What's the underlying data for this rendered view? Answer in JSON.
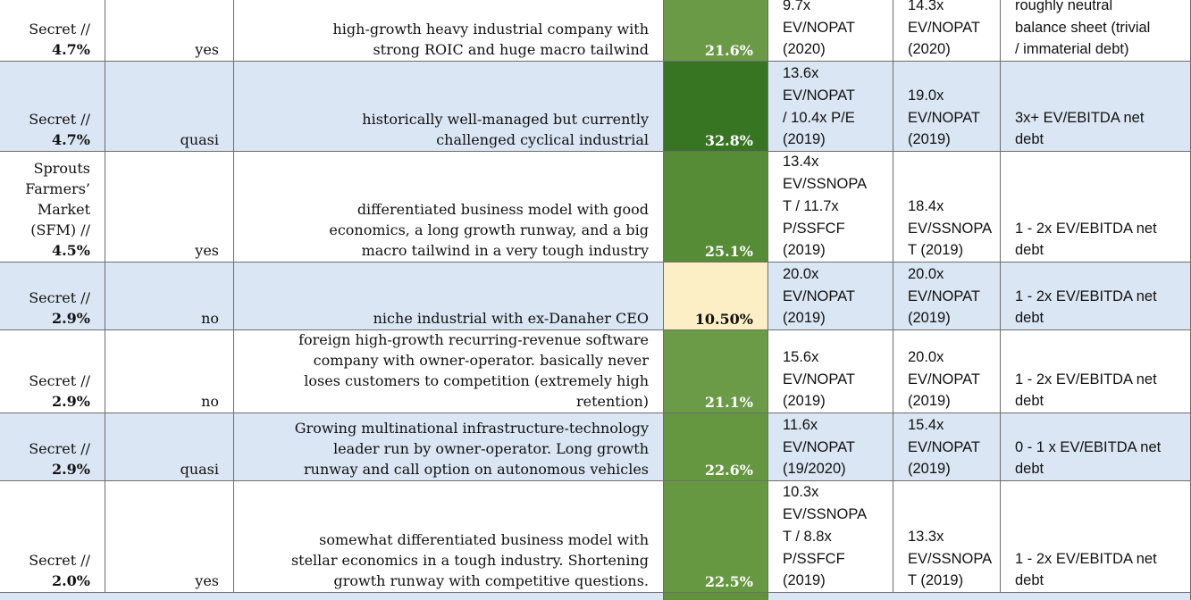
{
  "table": {
    "rows": [
      {
        "name": [
          "Secret //"
        ],
        "weight": "4.7%",
        "owner": "yes",
        "description": [
          "high-growth heavy industrial company with",
          "strong ROIC and huge macro tailwind"
        ],
        "return": "21.6%",
        "return_color": "#6b9a47",
        "valuation_now": [
          "9.7x",
          "EV/NOPAT",
          "(2020)"
        ],
        "valuation_target": [
          "14.3x",
          "EV/NOPAT",
          "(2020)"
        ],
        "balance_sheet": [
          "roughly neutral",
          "balance sheet (trivial",
          "/ immaterial debt)"
        ]
      },
      {
        "name": [
          "Secret //"
        ],
        "weight": "4.7%",
        "owner": "quasi",
        "description": [
          "historically well-managed but currently",
          "challenged cyclical industrial"
        ],
        "return": "32.8%",
        "return_color": "#377523",
        "valuation_now": [
          "13.6x",
          "EV/NOPAT",
          "/ 10.4x P/E",
          "(2019)"
        ],
        "valuation_target": [
          "19.0x",
          "EV/NOPAT",
          "(2019)"
        ],
        "balance_sheet": [
          "3x+ EV/EBITDA net",
          "debt"
        ]
      },
      {
        "name": [
          "Sprouts",
          "Farmers’",
          "Market",
          "(SFM) //"
        ],
        "weight": "4.5%",
        "owner": "yes",
        "description": [
          "differentiated business model with good",
          "economics, a long growth runway, and a big",
          "macro tailwind in a very tough industry"
        ],
        "return": "25.1%",
        "return_color": "#578c36",
        "valuation_now": [
          "13.4x",
          "EV/SSNOPA",
          "T  / 11.7x",
          "P/SSFCF",
          "(2019)"
        ],
        "valuation_target": [
          "18.4x",
          "EV/SSNOPA",
          "T (2019)"
        ],
        "balance_sheet": [
          "1 - 2x EV/EBITDA net",
          "debt"
        ]
      },
      {
        "name": [
          "Secret //"
        ],
        "weight": "2.9%",
        "owner": "no",
        "description": [
          "niche industrial with ex-Danaher CEO"
        ],
        "return": "10.50%",
        "return_color": "#fcefc5",
        "valuation_now": [
          "20.0x",
          "EV/NOPAT",
          "(2019)"
        ],
        "valuation_target": [
          "20.0x",
          "EV/NOPAT",
          "(2019)"
        ],
        "balance_sheet": [
          "1 - 2x EV/EBITDA net",
          "debt"
        ]
      },
      {
        "name": [
          "Secret //"
        ],
        "weight": "2.9%",
        "owner": "no",
        "description": [
          "foreign high-growth recurring-revenue software",
          "company with owner-operator.  basically never",
          "loses customers to competition (extremely high",
          "retention)"
        ],
        "return": "21.1%",
        "return_color": "#6c9b48",
        "valuation_now": [
          "15.6x",
          "EV/NOPAT",
          "(2019)"
        ],
        "valuation_target": [
          "20.0x",
          "EV/NOPAT",
          "(2019)"
        ],
        "balance_sheet": [
          "1 - 2x EV/EBITDA net",
          "debt"
        ]
      },
      {
        "name": [
          "Secret //"
        ],
        "weight": "2.9%",
        "owner": "quasi",
        "description": [
          "Growing multinational infrastructure-technology",
          "leader run by owner-operator. Long growth",
          "runway and call option on autonomous vehicles"
        ],
        "return": "22.6%",
        "return_color": "#659740",
        "valuation_now": [
          "11.6x",
          "EV/NOPAT",
          "(19/2020)"
        ],
        "valuation_target": [
          "15.4x",
          "EV/NOPAT",
          "(2019)"
        ],
        "balance_sheet": [
          "0 - 1 x EV/EBITDA net",
          "debt"
        ]
      },
      {
        "name": [
          "Secret //"
        ],
        "weight": "2.0%",
        "owner": "yes",
        "description": [
          "somewhat differentiated business model with",
          "stellar economics in a tough industry.  Shortening",
          "growth runway with competitive questions."
        ],
        "return": "22.5%",
        "return_color": "#669841",
        "valuation_now": [
          "10.3x",
          "EV/SSNOPA",
          "T / 8.8x",
          "P/SSFCF",
          "(2019)"
        ],
        "valuation_target": [
          "13.3x",
          "EV/SSNOPA",
          "T (2019)"
        ],
        "balance_sheet": [
          "1 - 2x EV/EBITDA net",
          "debt"
        ]
      }
    ]
  }
}
